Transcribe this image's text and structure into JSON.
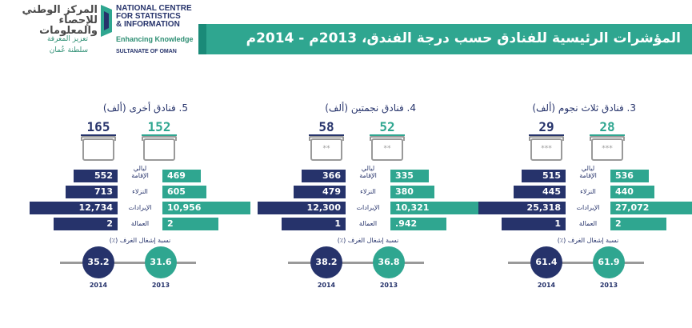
{
  "logo": {
    "arabic_line1": "المركز الوطني",
    "arabic_line2": "للإحصاء",
    "arabic_line3": "والمعلومات",
    "arabic_tag": "تعزيز المعرفة",
    "arabic_oman": "سلطنة عُمان",
    "en_line1": "NATIONAL CENTRE",
    "en_line2": "FOR STATISTICS",
    "en_line3": "& INFORMATION",
    "en_tag": "Enhancing Knowledge",
    "en_oman": "SULTANATE OF OMAN"
  },
  "title": "المؤشرات الرئيسية للفنادق حسب درجة الفندق، 2013م - 2014م",
  "colors": {
    "navy": "#26336b",
    "teal": "#2fa690",
    "gray": "#9a9a9a"
  },
  "row_labels": [
    "ليالي الإقامة",
    "النزلاء",
    "الإيرادات",
    "العمالة"
  ],
  "occupancy_label": "نسبة إشغال الغرف (٪)",
  "panels": [
    {
      "title": "3. فنادق ثلاث نجوم (ألف)",
      "count_2014": "29",
      "count_2013": "28",
      "stars": "***",
      "values_2014": [
        "515",
        "445",
        "25,318",
        "1"
      ],
      "values_2013": [
        "536",
        "440",
        "27,072",
        "2"
      ],
      "occ_2014": "61.4",
      "occ_2013": "61.9",
      "year_2014": "2014",
      "year_2013": "2013"
    },
    {
      "title": "4. فنادق نجمتين (ألف)",
      "count_2014": "58",
      "count_2013": "52",
      "stars": "**",
      "values_2014": [
        "366",
        "479",
        "12,300",
        "1"
      ],
      "values_2013": [
        "335",
        "380",
        "10,321",
        ".942"
      ],
      "occ_2014": "38.2",
      "occ_2013": "36.8",
      "year_2014": "2014",
      "year_2013": "2013"
    },
    {
      "title": "5. فنادق أخرى (ألف)",
      "count_2014": "165",
      "count_2013": "152",
      "stars": "",
      "values_2014": [
        "552",
        "713",
        "12,734",
        "2"
      ],
      "values_2013": [
        "469",
        "605",
        "10,956",
        "2"
      ],
      "occ_2014": "35.2",
      "occ_2013": "31.6",
      "year_2014": "2014",
      "year_2013": "2013"
    }
  ]
}
